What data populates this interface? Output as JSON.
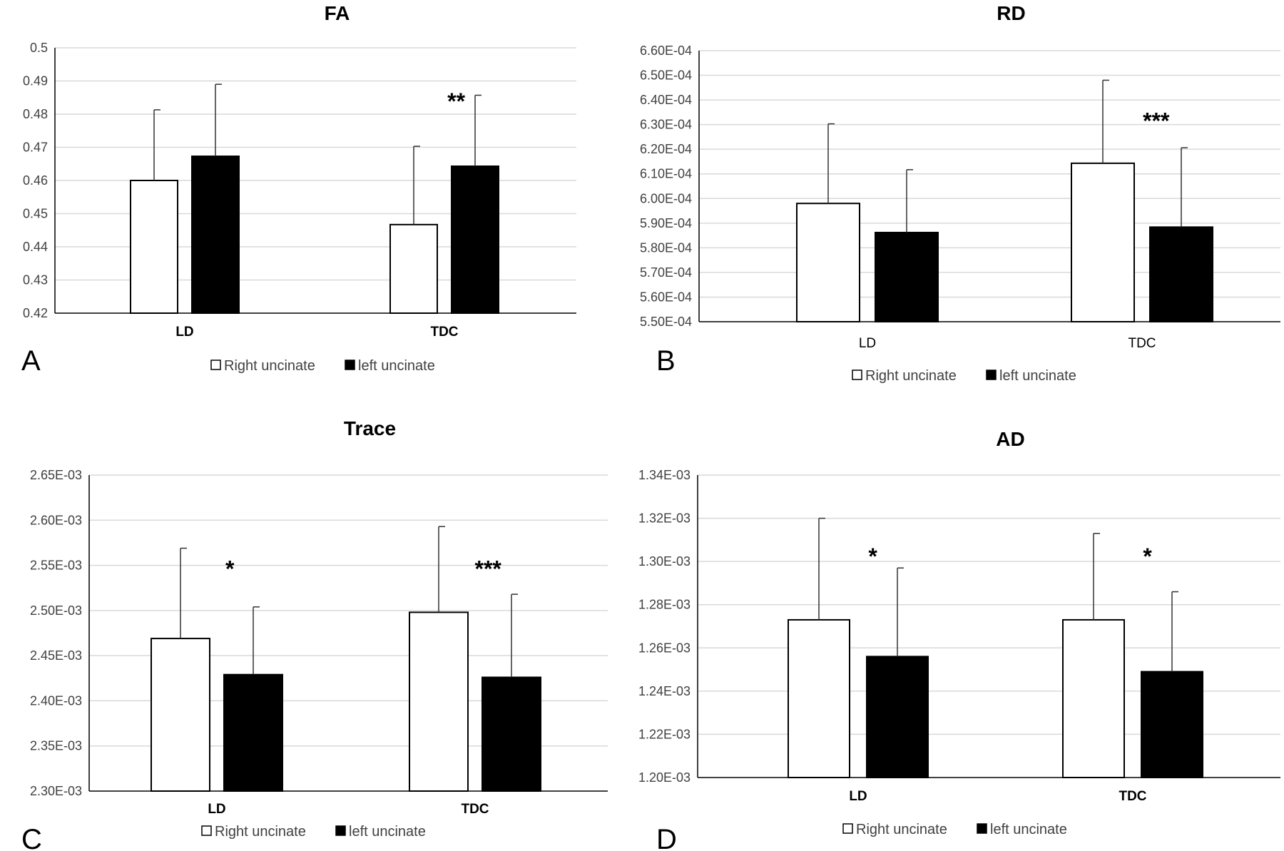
{
  "chart_data": [
    {
      "panel_letter": "A",
      "type": "bar",
      "title": "FA",
      "categories": [
        "LD",
        "TDC"
      ],
      "category_bold": true,
      "series": [
        {
          "name": "Right uncinate",
          "color": "#ffffff",
          "values": [
            0.46,
            0.4467
          ],
          "error": [
            0.0213,
            0.0236
          ]
        },
        {
          "name": "left uncinate",
          "color": "#000000",
          "values": [
            0.4673,
            0.4643
          ],
          "error": [
            0.0217,
            0.0214
          ]
        }
      ],
      "ylim": [
        0.42,
        0.5
      ],
      "yticks": [
        "0.42",
        "0.43",
        "0.44",
        "0.45",
        "0.46",
        "0.47",
        "0.48",
        "0.49",
        "0.5"
      ],
      "annotations": [
        {
          "text": "**",
          "category": 1,
          "y": 0.485
        }
      ],
      "legend_position": "bottom",
      "grid": true
    },
    {
      "panel_letter": "B",
      "type": "bar",
      "title": "RD",
      "categories": [
        "LD",
        "TDC"
      ],
      "category_bold": false,
      "series": [
        {
          "name": "Right uncinate",
          "color": "#ffffff",
          "values": [
            0.000598,
            0.0006143
          ],
          "error": [
            3.23e-05,
            3.37e-05
          ]
        },
        {
          "name": "left uncinate",
          "color": "#000000",
          "values": [
            0.0005862,
            0.0005884
          ],
          "error": [
            2.55e-05,
            3.22e-05
          ]
        }
      ],
      "ylim": [
        0.00055,
        0.00066
      ],
      "yticks": [
        "5.50E-04",
        "5.60E-04",
        "5.70E-04",
        "5.80E-04",
        "5.90E-04",
        "6.00E-04",
        "6.10E-04",
        "6.20E-04",
        "6.30E-04",
        "6.40E-04",
        "6.50E-04",
        "6.60E-04"
      ],
      "annotations": [
        {
          "text": "***",
          "category": 1,
          "y": 0.000633
        }
      ],
      "legend_position": "bottom",
      "grid": true
    },
    {
      "panel_letter": "C",
      "type": "bar",
      "title": "Trace",
      "categories": [
        "LD",
        "TDC"
      ],
      "category_bold": true,
      "series": [
        {
          "name": "Right uncinate",
          "color": "#ffffff",
          "values": [
            0.002469,
            0.002498
          ],
          "error": [
            0.0001,
            9.5e-05
          ]
        },
        {
          "name": "left uncinate",
          "color": "#000000",
          "values": [
            0.002429,
            0.002426
          ],
          "error": [
            7.5e-05,
            9.2e-05
          ]
        }
      ],
      "ylim": [
        0.0023,
        0.00265
      ],
      "yticks": [
        "2.30E-03",
        "2.35E-03",
        "2.40E-03",
        "2.45E-03",
        "2.50E-03",
        "2.55E-03",
        "2.60E-03",
        "2.65E-03"
      ],
      "annotations": [
        {
          "text": "*",
          "category": 0,
          "y": 0.00255
        },
        {
          "text": "***",
          "category": 1,
          "y": 0.00255
        }
      ],
      "legend_position": "bottom",
      "grid": true
    },
    {
      "panel_letter": "D",
      "type": "bar",
      "title": "AD",
      "categories": [
        "LD",
        "TDC"
      ],
      "category_bold": true,
      "series": [
        {
          "name": "Right uncinate",
          "color": "#ffffff",
          "values": [
            0.001273,
            0.001273
          ],
          "error": [
            4.7e-05,
            4e-05
          ]
        },
        {
          "name": "left uncinate",
          "color": "#000000",
          "values": [
            0.001256,
            0.001249
          ],
          "error": [
            4.1e-05,
            3.7e-05
          ]
        }
      ],
      "ylim": [
        0.0012,
        0.00134
      ],
      "yticks": [
        "1.20E-03",
        "1.22E-03",
        "1.24E-03",
        "1.26E-03",
        "1.28E-03",
        "1.30E-03",
        "1.32E-03",
        "1.34E-03"
      ],
      "annotations": [
        {
          "text": "*",
          "category": 0,
          "y": 0.001304
        },
        {
          "text": "*",
          "category": 1,
          "y": 0.001304
        }
      ],
      "legend_position": "bottom",
      "grid": true
    }
  ]
}
